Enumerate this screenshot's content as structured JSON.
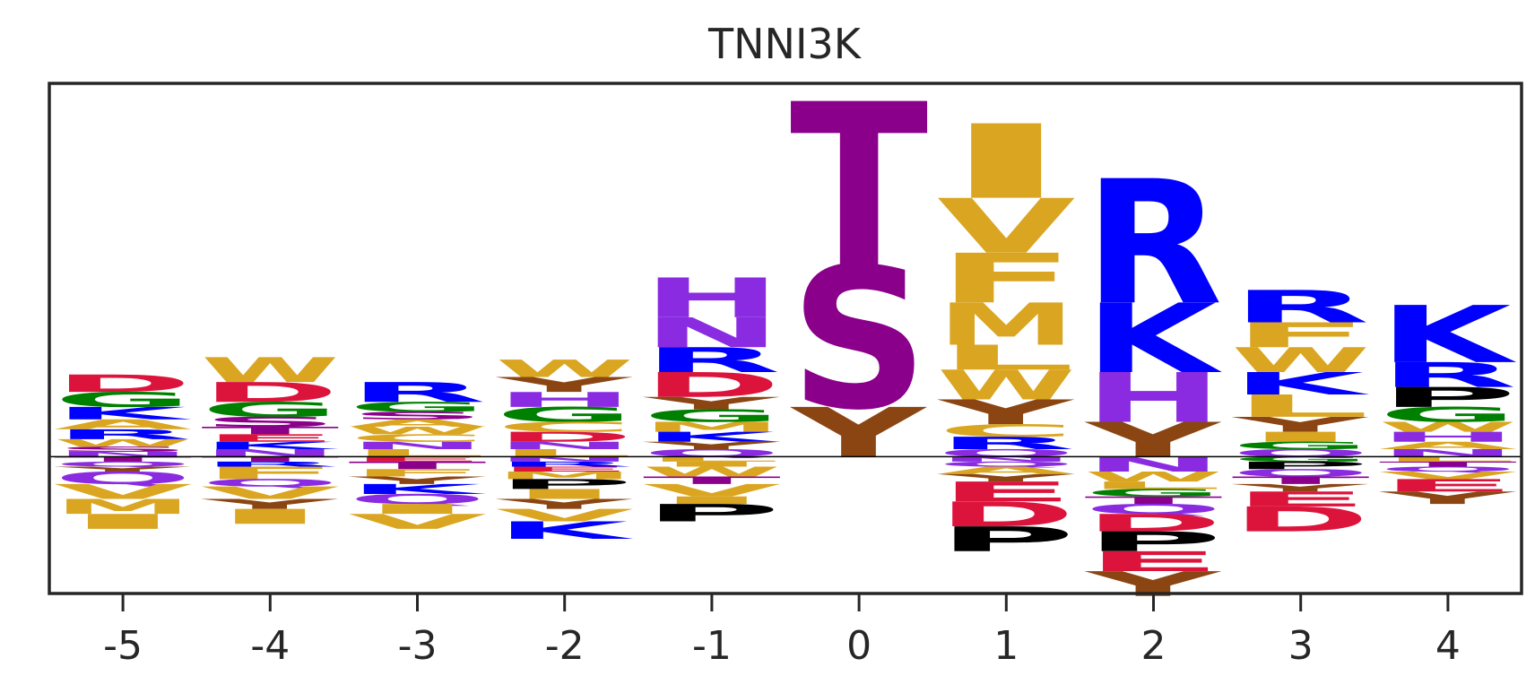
{
  "chart_data": {
    "type": "sequence-logo",
    "title": "TNNI3K",
    "x": [
      "-5",
      "-4",
      "-3",
      "-2",
      "-1",
      "0",
      "1",
      "2",
      "3",
      "4"
    ],
    "ylim": [
      -0.55,
      1.5
    ],
    "grid": false,
    "legend": "none",
    "colors": {
      "acidic": "#DC143C",
      "basic": "#0000FF",
      "hydrophobic": "#DAA520",
      "polar": "#8B008B",
      "small": "#008000",
      "histidine_asparagine_glutamine": "#8A2BE2",
      "aromatic_y": "#8B4513",
      "proline": "#000000"
    },
    "positions": [
      {
        "x": "-5",
        "above": [
          {
            "letter": "D",
            "height": 0.07
          },
          {
            "letter": "G",
            "height": 0.06
          },
          {
            "letter": "K",
            "height": 0.05
          },
          {
            "letter": "A",
            "height": 0.04
          },
          {
            "letter": "R",
            "height": 0.04
          },
          {
            "letter": "W",
            "height": 0.03
          },
          {
            "letter": "S",
            "height": 0.02
          },
          {
            "letter": "N",
            "height": 0.02
          }
        ],
        "below": [
          {
            "letter": "T",
            "height": 0.02
          },
          {
            "letter": "Q",
            "height": 0.02
          },
          {
            "letter": "Y",
            "height": 0.02
          },
          {
            "letter": "Q",
            "height": 0.05
          },
          {
            "letter": "V",
            "height": 0.06
          },
          {
            "letter": "M",
            "height": 0.06
          },
          {
            "letter": "I",
            "height": 0.06
          }
        ]
      },
      {
        "x": "-4",
        "above": [
          {
            "letter": "W",
            "height": 0.1
          },
          {
            "letter": "D",
            "height": 0.08
          },
          {
            "letter": "G",
            "height": 0.06
          },
          {
            "letter": "S",
            "height": 0.04
          },
          {
            "letter": "T",
            "height": 0.03
          },
          {
            "letter": "E",
            "height": 0.03
          },
          {
            "letter": "K",
            "height": 0.03
          },
          {
            "letter": "N",
            "height": 0.03
          }
        ],
        "below": [
          {
            "letter": "T",
            "height": 0.02
          },
          {
            "letter": "R",
            "height": 0.02
          },
          {
            "letter": "F",
            "height": 0.05
          },
          {
            "letter": "Q",
            "height": 0.03
          },
          {
            "letter": "V",
            "height": 0.05
          },
          {
            "letter": "Y",
            "height": 0.04
          },
          {
            "letter": "I",
            "height": 0.06
          }
        ]
      },
      {
        "x": "-3",
        "above": [
          {
            "letter": "R",
            "height": 0.08
          },
          {
            "letter": "G",
            "height": 0.04
          },
          {
            "letter": "S",
            "height": 0.03
          },
          {
            "letter": "A",
            "height": 0.03
          },
          {
            "letter": "W",
            "height": 0.03
          },
          {
            "letter": "C",
            "height": 0.03
          },
          {
            "letter": "N",
            "height": 0.03
          },
          {
            "letter": "L",
            "height": 0.03
          }
        ],
        "below": [
          {
            "letter": "E",
            "height": 0.02
          },
          {
            "letter": "T",
            "height": 0.03
          },
          {
            "letter": "F",
            "height": 0.03
          },
          {
            "letter": "Y",
            "height": 0.03
          },
          {
            "letter": "K",
            "height": 0.04
          },
          {
            "letter": "Q",
            "height": 0.04
          },
          {
            "letter": "I",
            "height": 0.04
          },
          {
            "letter": "V",
            "height": 0.06
          }
        ]
      },
      {
        "x": "-2",
        "above": [
          {
            "letter": "W",
            "height": 0.07
          },
          {
            "letter": "Y",
            "height": 0.06
          },
          {
            "letter": "H",
            "height": 0.06
          },
          {
            "letter": "G",
            "height": 0.06
          },
          {
            "letter": "C",
            "height": 0.04
          },
          {
            "letter": "D",
            "height": 0.04
          },
          {
            "letter": "N",
            "height": 0.03
          },
          {
            "letter": "L",
            "height": 0.03
          }
        ],
        "below": [
          {
            "letter": "N",
            "height": 0.02
          },
          {
            "letter": "R",
            "height": 0.02
          },
          {
            "letter": "E",
            "height": 0.02
          },
          {
            "letter": "M",
            "height": 0.03
          },
          {
            "letter": "P",
            "height": 0.04
          },
          {
            "letter": "I",
            "height": 0.04
          },
          {
            "letter": "Y",
            "height": 0.04
          },
          {
            "letter": "V",
            "height": 0.05
          },
          {
            "letter": "K",
            "height": 0.07
          }
        ]
      },
      {
        "x": "-1",
        "above": [
          {
            "letter": "H",
            "height": 0.16
          },
          {
            "letter": "N",
            "height": 0.12
          },
          {
            "letter": "R",
            "height": 0.1
          },
          {
            "letter": "D",
            "height": 0.1
          },
          {
            "letter": "Y",
            "height": 0.05
          },
          {
            "letter": "G",
            "height": 0.05
          },
          {
            "letter": "M",
            "height": 0.04
          },
          {
            "letter": "K",
            "height": 0.04
          },
          {
            "letter": "Y",
            "height": 0.03
          },
          {
            "letter": "Q",
            "height": 0.03
          }
        ],
        "below": [
          {
            "letter": "L",
            "height": 0.02
          },
          {
            "letter": "I",
            "height": 0.02
          },
          {
            "letter": "W",
            "height": 0.04
          },
          {
            "letter": "T",
            "height": 0.03
          },
          {
            "letter": "V",
            "height": 0.05
          },
          {
            "letter": "I",
            "height": 0.03
          },
          {
            "letter": "P",
            "height": 0.07
          }
        ]
      },
      {
        "x": "0",
        "above": [
          {
            "letter": "T",
            "height": 0.66
          },
          {
            "letter": "S",
            "height": 0.57
          },
          {
            "letter": "Y",
            "height": 0.2
          }
        ],
        "below": []
      },
      {
        "x": "1",
        "above": [
          {
            "letter": "I",
            "height": 0.3
          },
          {
            "letter": "V",
            "height": 0.22
          },
          {
            "letter": "F",
            "height": 0.2
          },
          {
            "letter": "M",
            "height": 0.17
          },
          {
            "letter": "L",
            "height": 0.1
          },
          {
            "letter": "W",
            "height": 0.12
          },
          {
            "letter": "Y",
            "height": 0.1
          },
          {
            "letter": "C",
            "height": 0.05
          },
          {
            "letter": "R",
            "height": 0.05
          },
          {
            "letter": "Q",
            "height": 0.03
          }
        ],
        "below": [
          {
            "letter": "N",
            "height": 0.02
          },
          {
            "letter": "Q",
            "height": 0.02
          },
          {
            "letter": "A",
            "height": 0.03
          },
          {
            "letter": "Y",
            "height": 0.03
          },
          {
            "letter": "E",
            "height": 0.08
          },
          {
            "letter": "D",
            "height": 0.1
          },
          {
            "letter": "P",
            "height": 0.1
          }
        ]
      },
      {
        "x": "2",
        "above": [
          {
            "letter": "R",
            "height": 0.5
          },
          {
            "letter": "K",
            "height": 0.28
          },
          {
            "letter": "H",
            "height": 0.2
          },
          {
            "letter": "Y",
            "height": 0.14
          }
        ],
        "below": [
          {
            "letter": "N",
            "height": 0.06
          },
          {
            "letter": "W",
            "height": 0.04
          },
          {
            "letter": "L",
            "height": 0.03
          },
          {
            "letter": "G",
            "height": 0.03
          },
          {
            "letter": "T",
            "height": 0.03
          },
          {
            "letter": "Q",
            "height": 0.04
          },
          {
            "letter": "D",
            "height": 0.07
          },
          {
            "letter": "P",
            "height": 0.08
          },
          {
            "letter": "E",
            "height": 0.08
          },
          {
            "letter": "Y",
            "height": 0.1
          }
        ]
      },
      {
        "x": "3",
        "above": [
          {
            "letter": "R",
            "height": 0.13
          },
          {
            "letter": "F",
            "height": 0.1
          },
          {
            "letter": "W",
            "height": 0.1
          },
          {
            "letter": "K",
            "height": 0.09
          },
          {
            "letter": "L",
            "height": 0.09
          },
          {
            "letter": "Y",
            "height": 0.06
          },
          {
            "letter": "I",
            "height": 0.04
          },
          {
            "letter": "G",
            "height": 0.03
          },
          {
            "letter": "Q",
            "height": 0.03
          }
        ],
        "below": [
          {
            "letter": "G",
            "height": 0.02
          },
          {
            "letter": "P",
            "height": 0.03
          },
          {
            "letter": "Q",
            "height": 0.03
          },
          {
            "letter": "T",
            "height": 0.03
          },
          {
            "letter": "Y",
            "height": 0.03
          },
          {
            "letter": "E",
            "height": 0.06
          },
          {
            "letter": "D",
            "height": 0.1
          }
        ]
      },
      {
        "x": "4",
        "above": [
          {
            "letter": "K",
            "height": 0.23
          },
          {
            "letter": "R",
            "height": 0.1
          },
          {
            "letter": "P",
            "height": 0.08
          },
          {
            "letter": "G",
            "height": 0.06
          },
          {
            "letter": "W",
            "height": 0.04
          },
          {
            "letter": "H",
            "height": 0.04
          },
          {
            "letter": "A",
            "height": 0.03
          },
          {
            "letter": "N",
            "height": 0.03
          }
        ],
        "below": [
          {
            "letter": "L",
            "height": 0.02
          },
          {
            "letter": "T",
            "height": 0.02
          },
          {
            "letter": "Q",
            "height": 0.02
          },
          {
            "letter": "V",
            "height": 0.03
          },
          {
            "letter": "E",
            "height": 0.05
          },
          {
            "letter": "Y",
            "height": 0.05
          }
        ]
      }
    ]
  }
}
